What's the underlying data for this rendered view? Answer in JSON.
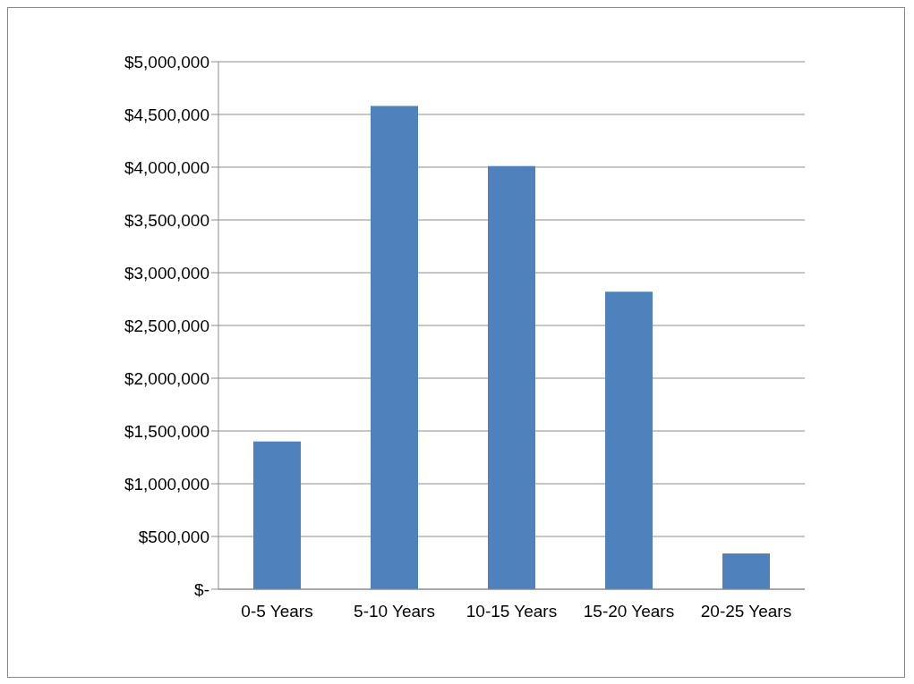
{
  "chart_data": {
    "type": "bar",
    "categories": [
      "0-5 Years",
      "5-10 Years",
      "10-15 Years",
      "15-20 Years",
      "20-25 Years"
    ],
    "values": [
      1400000,
      4580000,
      4010000,
      2820000,
      340000
    ],
    "color": "#4f81bd",
    "ylim": [
      0,
      5000000
    ],
    "yticks": [
      {
        "value": 0,
        "label": "$-"
      },
      {
        "value": 500000,
        "label": "$500,000"
      },
      {
        "value": 1000000,
        "label": "$1,000,000"
      },
      {
        "value": 1500000,
        "label": "$1,500,000"
      },
      {
        "value": 2000000,
        "label": "$2,000,000"
      },
      {
        "value": 2500000,
        "label": "$2,500,000"
      },
      {
        "value": 3000000,
        "label": "$3,000,000"
      },
      {
        "value": 3500000,
        "label": "$3,500,000"
      },
      {
        "value": 4000000,
        "label": "$4,000,000"
      },
      {
        "value": 4500000,
        "label": "$4,500,000"
      },
      {
        "value": 5000000,
        "label": "$5,000,000"
      }
    ],
    "grid": "y"
  }
}
